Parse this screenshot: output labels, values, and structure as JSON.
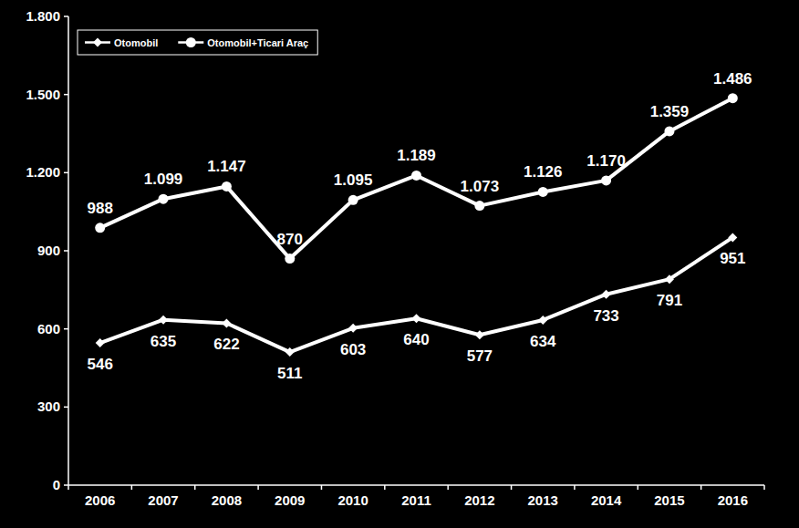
{
  "chart_data": {
    "type": "line",
    "categories": [
      "2006",
      "2007",
      "2008",
      "2009",
      "2010",
      "2011",
      "2012",
      "2013",
      "2014",
      "2015",
      "2016"
    ],
    "series": [
      {
        "name": "Otomobil",
        "color": "#ffffff",
        "marker": "diamond",
        "values": [
          546,
          635,
          622,
          511,
          603,
          640,
          577,
          634,
          733,
          791,
          951
        ]
      },
      {
        "name": "Otomobil+Ticari Araç",
        "color": "#ffffff",
        "marker": "circle",
        "values": [
          988,
          1099,
          1147,
          870,
          1095,
          1189,
          1073,
          1126,
          1170,
          1359,
          1486
        ],
        "value_labels": [
          "988",
          "1.099",
          "1.147",
          "870",
          "1.095",
          "1.189",
          "1.073",
          "1.126",
          "1.170",
          "1.359",
          "1.486"
        ]
      }
    ],
    "ylim": [
      0,
      1800
    ],
    "yticks": [
      0,
      300,
      600,
      900,
      {
        "value": 1200,
        "label": "1.200"
      },
      {
        "value": 1500,
        "label": "1.500"
      },
      {
        "value": 1800,
        "label": "1.800"
      }
    ],
    "grid": false,
    "legend": "upper left",
    "data_labels": true
  }
}
